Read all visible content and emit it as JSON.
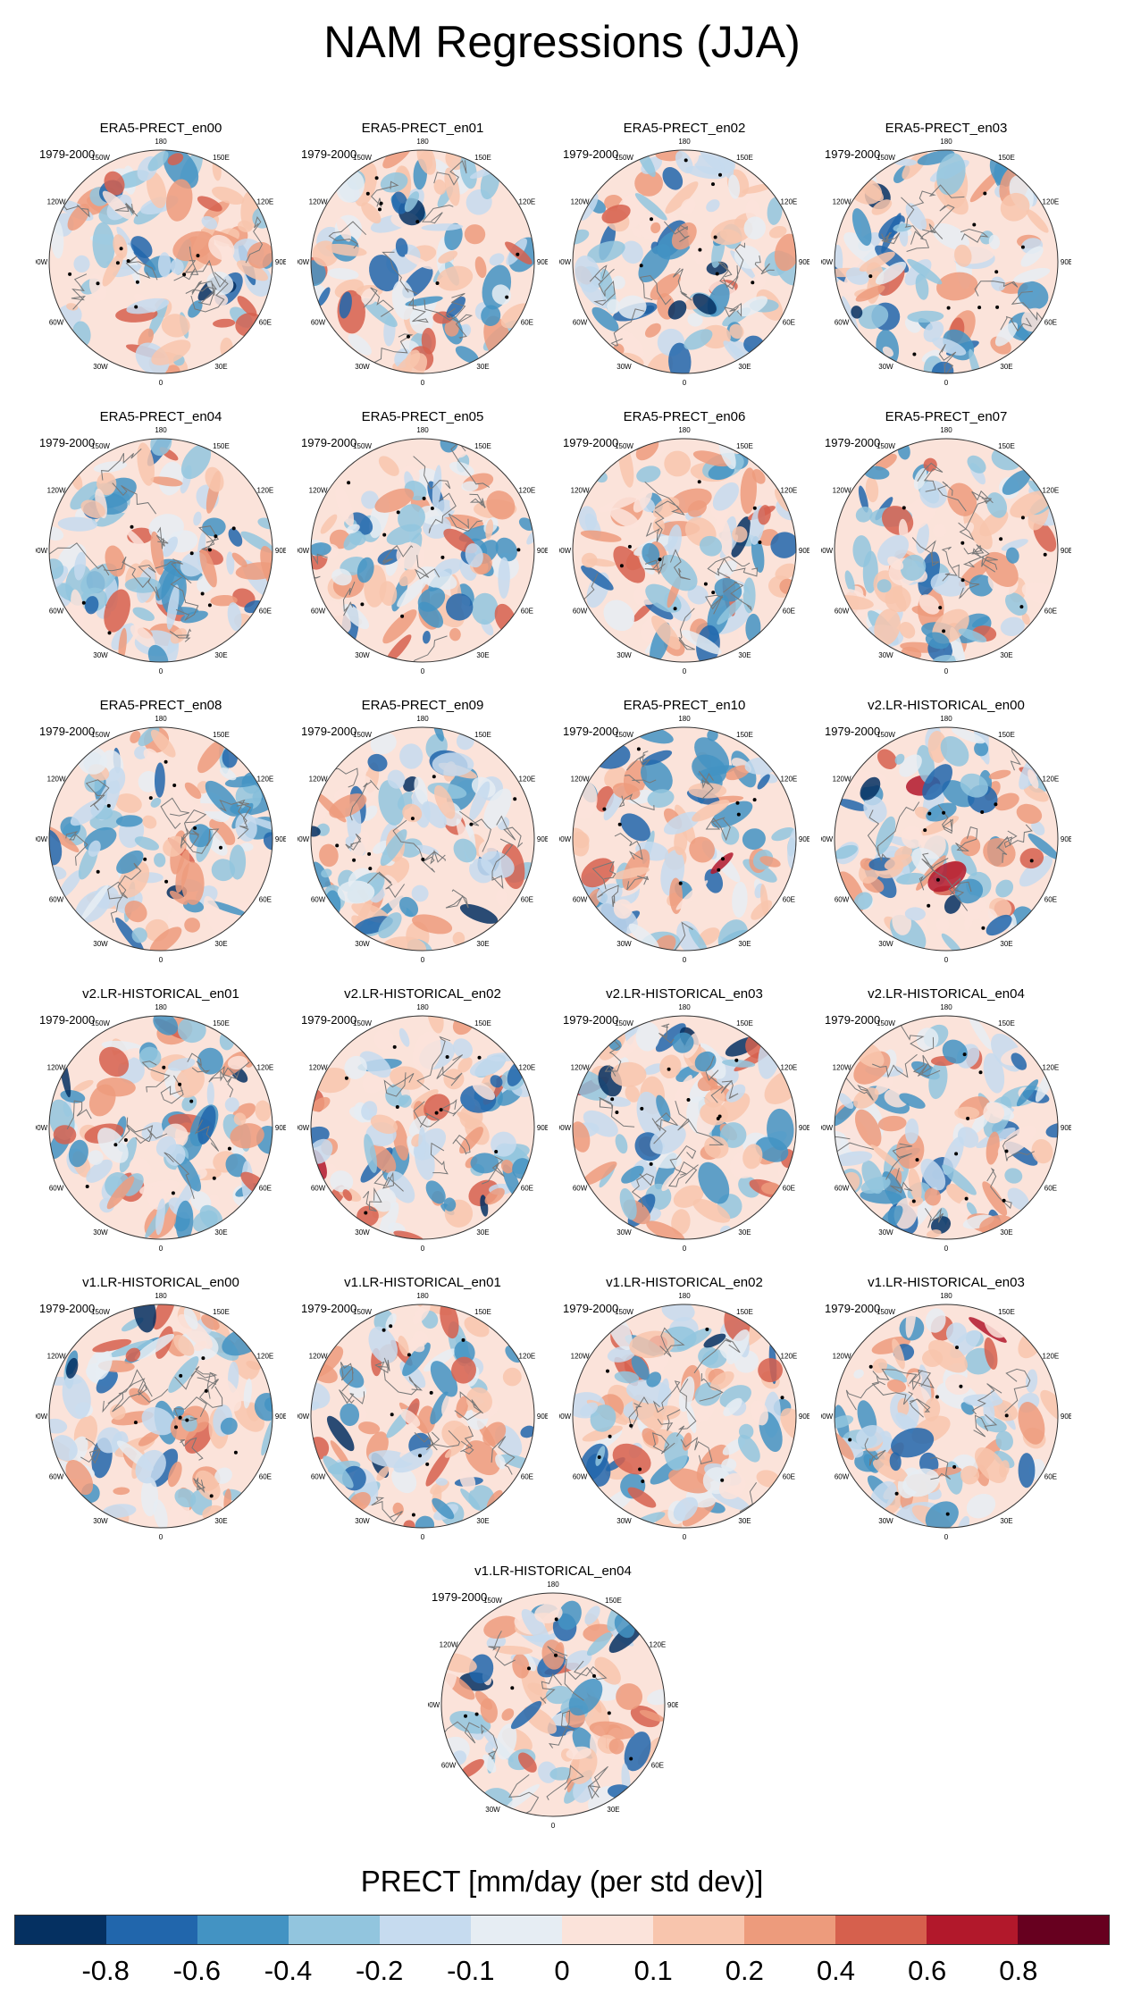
{
  "title": "NAM Regressions (JJA)",
  "period": "1979-2000",
  "lon_labels": [
    "180",
    "150E",
    "120E",
    "90E",
    "60E",
    "30E",
    "0",
    "30W",
    "60W",
    "90W",
    "120W",
    "150W"
  ],
  "panels": [
    {
      "name": "ERA5-PRECT_en00"
    },
    {
      "name": "ERA5-PRECT_en01"
    },
    {
      "name": "ERA5-PRECT_en02"
    },
    {
      "name": "ERA5-PRECT_en03"
    },
    {
      "name": "ERA5-PRECT_en04"
    },
    {
      "name": "ERA5-PRECT_en05"
    },
    {
      "name": "ERA5-PRECT_en06"
    },
    {
      "name": "ERA5-PRECT_en07"
    },
    {
      "name": "ERA5-PRECT_en08"
    },
    {
      "name": "ERA5-PRECT_en09"
    },
    {
      "name": "ERA5-PRECT_en10"
    },
    {
      "name": "v2.LR-HISTORICAL_en00"
    },
    {
      "name": "v2.LR-HISTORICAL_en01"
    },
    {
      "name": "v2.LR-HISTORICAL_en02"
    },
    {
      "name": "v2.LR-HISTORICAL_en03"
    },
    {
      "name": "v2.LR-HISTORICAL_en04"
    },
    {
      "name": "v1.LR-HISTORICAL_en00"
    },
    {
      "name": "v1.LR-HISTORICAL_en01"
    },
    {
      "name": "v1.LR-HISTORICAL_en02"
    },
    {
      "name": "v1.LR-HISTORICAL_en03"
    },
    {
      "name": "v1.LR-HISTORICAL_en04"
    }
  ],
  "colorbar": {
    "title": "PRECT [mm/day (per std dev)]",
    "colors": [
      "#053061",
      "#2166ac",
      "#4393c3",
      "#92c5de",
      "#c6dbef",
      "#e6edf3",
      "#fbe3da",
      "#f8c5ad",
      "#ed9b7c",
      "#d6604d",
      "#b2182b",
      "#67001f"
    ],
    "labels": [
      "-0.8",
      "-0.6",
      "-0.4",
      "-0.2",
      "-0.1",
      "0",
      "0.1",
      "0.2",
      "0.4",
      "0.6",
      "0.8"
    ]
  }
}
